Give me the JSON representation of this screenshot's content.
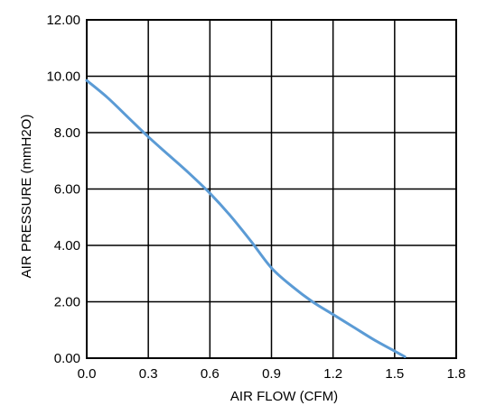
{
  "chart_data": {
    "type": "line",
    "xlabel": "AIR FLOW   (CFM)",
    "ylabel": "AIR PRESSURE   (mmH2O)",
    "xlim": [
      0,
      1.8
    ],
    "ylim": [
      0,
      12
    ],
    "xticks": [
      0,
      0.3,
      0.6,
      0.9,
      1.2,
      1.5,
      1.8
    ],
    "yticks": [
      0,
      2,
      4,
      6,
      8,
      10,
      12
    ],
    "xtick_labels": [
      "0.0",
      "0.3",
      "0.6",
      "0.9",
      "1.2",
      "1.5",
      "1.8"
    ],
    "ytick_labels": [
      "0.00",
      "2.00",
      "4.00",
      "6.00",
      "8.00",
      "10.00",
      "12.00"
    ],
    "grid": true,
    "legend": "none",
    "series": [
      {
        "color": "#5b9bd5",
        "x": [
          0.0,
          0.1,
          0.2,
          0.3,
          0.4,
          0.5,
          0.6,
          0.7,
          0.8,
          0.9,
          1.0,
          1.1,
          1.2,
          1.3,
          1.4,
          1.5,
          1.55
        ],
        "y": [
          9.85,
          9.25,
          8.55,
          7.85,
          7.2,
          6.55,
          5.85,
          5.05,
          4.15,
          3.2,
          2.55,
          2.0,
          1.55,
          1.1,
          0.65,
          0.25,
          0.05
        ]
      }
    ]
  }
}
